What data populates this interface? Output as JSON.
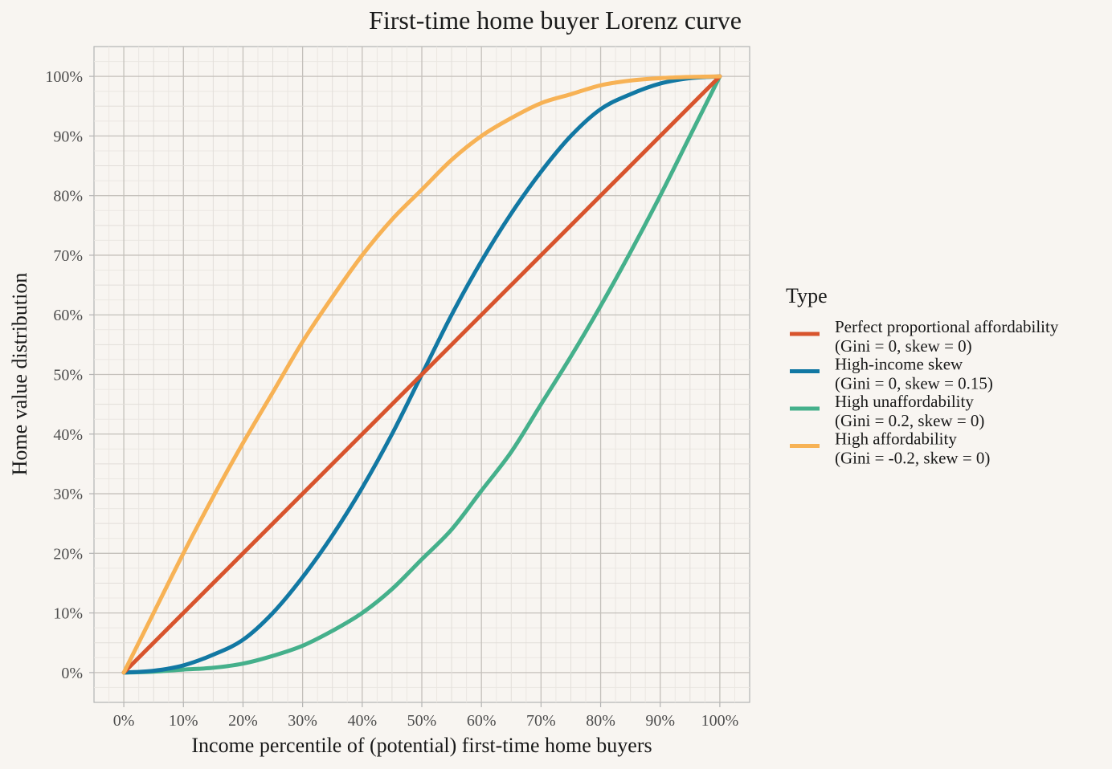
{
  "chart_data": {
    "type": "line",
    "title": "First-time home buyer Lorenz curve",
    "xlabel": "Income percentile of (potential) first-time home buyers",
    "ylabel": "Home value distribution",
    "xlim": [
      -0.05,
      1.05
    ],
    "ylim": [
      -0.05,
      1.05
    ],
    "x_ticks": [
      0,
      0.1,
      0.2,
      0.3,
      0.4,
      0.5,
      0.6,
      0.7,
      0.8,
      0.9,
      1.0
    ],
    "x_tick_labels": [
      "0%",
      "10%",
      "20%",
      "30%",
      "40%",
      "50%",
      "60%",
      "70%",
      "80%",
      "90%",
      "100%"
    ],
    "y_ticks": [
      0,
      0.1,
      0.2,
      0.3,
      0.4,
      0.5,
      0.6,
      0.7,
      0.8,
      0.9,
      1.0
    ],
    "y_tick_labels": [
      "0%",
      "10%",
      "20%",
      "30%",
      "40%",
      "50%",
      "60%",
      "70%",
      "80%",
      "90%",
      "100%"
    ],
    "grid": true,
    "legend": {
      "title": "Type",
      "position": "right"
    },
    "x": [
      0,
      0.05,
      0.1,
      0.15,
      0.2,
      0.25,
      0.3,
      0.35,
      0.4,
      0.45,
      0.5,
      0.55,
      0.6,
      0.65,
      0.7,
      0.75,
      0.8,
      0.85,
      0.9,
      0.95,
      1.0
    ],
    "series": [
      {
        "name": "Perfect proportional affordability",
        "sub": "(Gini = 0, skew = 0)",
        "color": "#d8542d",
        "values": [
          0,
          0.05,
          0.1,
          0.15,
          0.2,
          0.25,
          0.3,
          0.35,
          0.4,
          0.45,
          0.5,
          0.55,
          0.6,
          0.65,
          0.7,
          0.75,
          0.8,
          0.85,
          0.9,
          0.95,
          1.0
        ]
      },
      {
        "name": "High-income skew",
        "sub": "(Gini = 0, skew = 0.15)",
        "color": "#1278a3",
        "values": [
          0,
          0.003,
          0.012,
          0.03,
          0.055,
          0.1,
          0.16,
          0.23,
          0.31,
          0.4,
          0.5,
          0.6,
          0.69,
          0.77,
          0.84,
          0.9,
          0.945,
          0.97,
          0.988,
          0.997,
          1.0
        ]
      },
      {
        "name": "High unaffordability",
        "sub": "(Gini = 0.2, skew = 0)",
        "color": "#45b08b",
        "values": [
          0,
          0.0015,
          0.005,
          0.008,
          0.015,
          0.028,
          0.045,
          0.07,
          0.1,
          0.14,
          0.19,
          0.24,
          0.305,
          0.37,
          0.45,
          0.53,
          0.615,
          0.705,
          0.8,
          0.9,
          1.0
        ]
      },
      {
        "name": "High affordability",
        "sub": "(Gini = -0.2, skew = 0)",
        "color": "#f7b255",
        "values": [
          0,
          0.1,
          0.2,
          0.295,
          0.385,
          0.47,
          0.555,
          0.63,
          0.7,
          0.76,
          0.81,
          0.86,
          0.9,
          0.93,
          0.955,
          0.97,
          0.985,
          0.993,
          0.997,
          0.999,
          1.0
        ]
      }
    ]
  }
}
